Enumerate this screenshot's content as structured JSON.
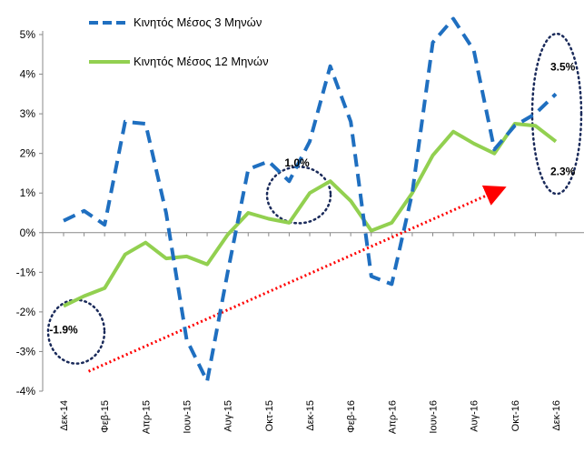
{
  "chart_data": {
    "type": "line",
    "categories": [
      "Δεκ-14",
      "Ιαν-15",
      "Φεβ-15",
      "Μαρ-15",
      "Απρ-15",
      "Μαϊ-15",
      "Ιουν-15",
      "Ιουλ-15",
      "Αυγ-15",
      "Σεπ-15",
      "Οκτ-15",
      "Νοε-15",
      "Δεκ-15",
      "Ιαν-16",
      "Φεβ-16",
      "Μαρ-16",
      "Απρ-16",
      "Μαϊ-16",
      "Ιουν-16",
      "Ιουλ-16",
      "Αυγ-16",
      "Σεπ-16",
      "Οκτ-16",
      "Νοε-16",
      "Δεκ-16"
    ],
    "tick_labels": [
      "Δεκ-14",
      "Φεβ-15",
      "Απρ-15",
      "Ιουν-15",
      "Αυγ-15",
      "Οκτ-15",
      "Δεκ-15",
      "Φεβ-16",
      "Απρ-16",
      "Ιουν-16",
      "Αυγ-16",
      "Οκτ-16",
      "Δεκ-16"
    ],
    "y_ticks": [
      "5%",
      "4%",
      "3%",
      "2%",
      "1%",
      "0%",
      "-1%",
      "-2%",
      "-3%",
      "-4%"
    ],
    "ylim": [
      -4,
      5
    ],
    "series": [
      {
        "name": "Κινητός Μέσος 3 Μηνών",
        "color": "#1f6fc0",
        "style": "dashed",
        "values": [
          0.3,
          0.55,
          0.2,
          2.8,
          2.75,
          0.5,
          -2.7,
          -3.75,
          -1.0,
          1.6,
          1.8,
          1.3,
          2.3,
          4.2,
          2.8,
          -1.1,
          -1.3,
          1.0,
          4.8,
          5.4,
          4.6,
          2.1,
          2.7,
          3.0,
          3.5
        ]
      },
      {
        "name": "Κινητός Μέσος 12 Μηνών",
        "color": "#92d050",
        "style": "solid",
        "values": [
          -1.85,
          -1.6,
          -1.4,
          -0.55,
          -0.25,
          -0.65,
          -0.6,
          -0.8,
          -0.05,
          0.5,
          0.35,
          0.25,
          1.0,
          1.3,
          0.8,
          0.05,
          0.25,
          1.0,
          1.95,
          2.55,
          2.25,
          2.0,
          2.75,
          2.7,
          2.3
        ]
      }
    ],
    "annotations": [
      {
        "text": "-1.9%",
        "index": 0,
        "series": 1
      },
      {
        "text": "1.0%",
        "index": 12,
        "series": 1
      },
      {
        "text": "3.5%",
        "index": 24,
        "series": 0
      },
      {
        "text": "2.3%",
        "index": 24,
        "series": 1
      }
    ],
    "trend_arrow_color": "#ff0000",
    "grid": false,
    "legend_position": "top-left"
  }
}
